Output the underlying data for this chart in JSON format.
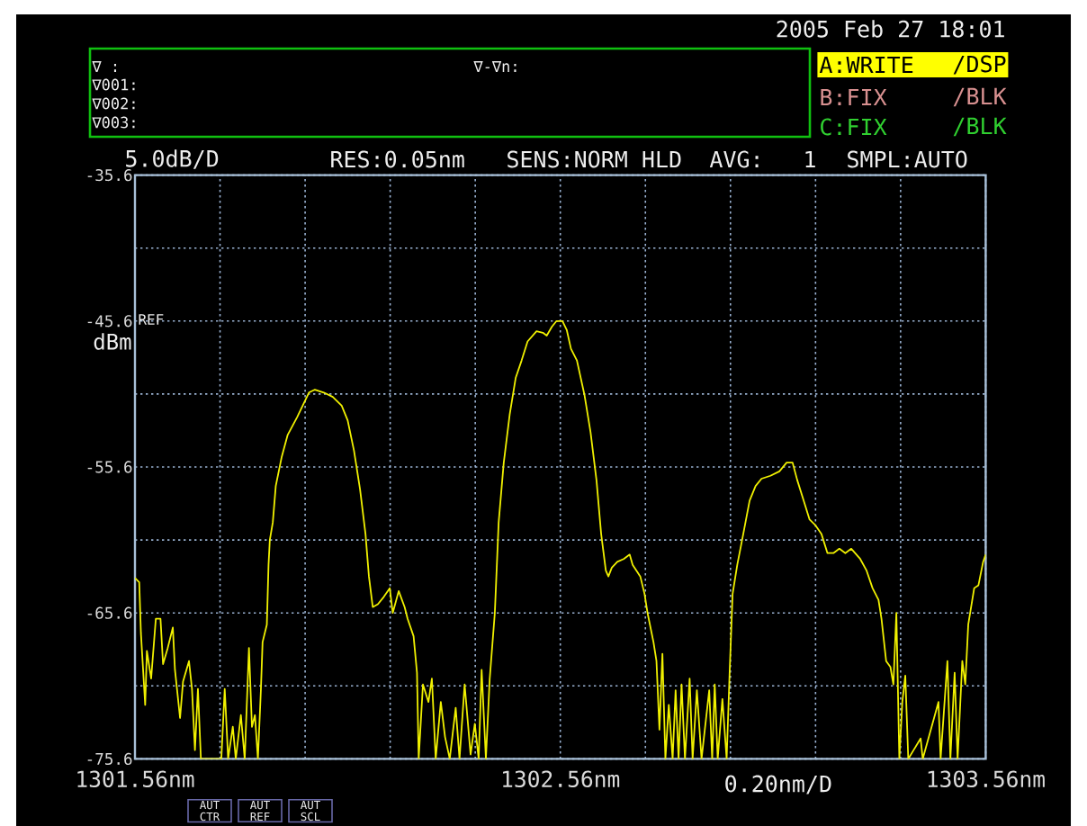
{
  "chart_data": {
    "type": "line",
    "xlim": [
      1301.56,
      1303.56
    ],
    "ylim": [
      -75.6,
      -35.6
    ],
    "xticks": [
      {
        "value": 1301.56,
        "label": "1301.56nm"
      },
      {
        "value": 1301.76,
        "label": null
      },
      {
        "value": 1301.96,
        "label": null
      },
      {
        "value": 1302.16,
        "label": null
      },
      {
        "value": 1302.36,
        "label": null
      },
      {
        "value": 1302.56,
        "label": "1302.56nm"
      },
      {
        "value": 1302.76,
        "label": null
      },
      {
        "value": 1302.96,
        "label": null
      },
      {
        "value": 1303.16,
        "label": null
      },
      {
        "value": 1303.36,
        "label": null
      },
      {
        "value": 1303.56,
        "label": "1303.56nm"
      }
    ],
    "yticks": [
      -75.6,
      {
        "value": -70.6,
        "label": null
      },
      -65.6,
      {
        "value": -60.6,
        "label": null
      },
      -55.6,
      {
        "value": -50.6,
        "label": null
      },
      -45.6,
      {
        "value": -40.6,
        "label": null
      },
      -35.6
    ],
    "grid": true,
    "xlabel": "0.20nm/D",
    "ylabel": "dBm",
    "annotations": [
      "2005 Feb 27 18:01",
      "∇ :",
      "∇-∇n:",
      "∇001:",
      "∇002:",
      "∇003:",
      "A:WRITE",
      "/DSP",
      "B:FIX",
      "/BLK",
      "C:FIX",
      "/BLK",
      "5.0dB/D",
      "RES:0.05nm",
      "SENS:NORM HLD",
      "AVG:",
      "1",
      "SMPL:AUTO",
      "REF",
      "AUT CTR",
      "AUT REF",
      "AUT SCL"
    ],
    "x": [
      1301.56,
      1301.57,
      1301.574,
      1301.584,
      1301.588,
      1301.598,
      1301.609,
      1301.62,
      1301.626,
      1301.637,
      1301.649,
      1301.654,
      1301.666,
      1301.673,
      1301.687,
      1301.694,
      1301.701,
      1301.708,
      1301.715,
      1301.763,
      1301.771,
      1301.779,
      1301.79,
      1301.797,
      1301.809,
      1301.818,
      1301.828,
      1301.835,
      1301.842,
      1301.849,
      1301.856,
      1301.86,
      1301.87,
      1301.874,
      1301.877,
      1301.884,
      1301.891,
      1301.905,
      1301.919,
      1301.941,
      1301.969,
      1301.983,
      1302.004,
      1302.025,
      1302.046,
      1302.06,
      1302.075,
      1302.089,
      1302.102,
      1302.11,
      1302.119,
      1302.131,
      1302.145,
      1302.159,
      1302.166,
      1302.18,
      1302.194,
      1302.201,
      1302.215,
      1302.223,
      1302.227,
      1302.237,
      1302.25,
      1302.258,
      1302.267,
      1302.279,
      1302.289,
      1302.3,
      1302.314,
      1302.323,
      1302.335,
      1302.349,
      1302.359,
      1302.368,
      1302.375,
      1302.385,
      1302.394,
      1302.406,
      1302.415,
      1302.427,
      1302.441,
      1302.455,
      1302.469,
      1302.483,
      1302.504,
      1302.519,
      1302.528,
      1302.54,
      1302.551,
      1302.565,
      1302.575,
      1302.585,
      1302.599,
      1302.617,
      1302.631,
      1302.645,
      1302.656,
      1302.667,
      1302.673,
      1302.681,
      1302.694,
      1302.709,
      1302.723,
      1302.73,
      1302.748,
      1302.758,
      1302.765,
      1302.779,
      1302.786,
      1302.793,
      1302.8,
      1302.807,
      1302.815,
      1302.824,
      1302.831,
      1302.838,
      1302.845,
      1302.853,
      1302.864,
      1302.871,
      1302.881,
      1302.892,
      1302.91,
      1302.917,
      1302.923,
      1302.93,
      1302.941,
      1302.951,
      1302.958,
      1302.965,
      1302.976,
      1302.99,
      1303.005,
      1303.019,
      1303.033,
      1303.054,
      1303.075,
      1303.092,
      1303.106,
      1303.117,
      1303.132,
      1303.146,
      1303.16,
      1303.174,
      1303.188,
      1303.202,
      1303.216,
      1303.23,
      1303.244,
      1303.265,
      1303.28,
      1303.294,
      1303.308,
      1303.315,
      1303.326,
      1303.336,
      1303.343,
      1303.35,
      1303.357,
      1303.364,
      1303.371,
      1303.378,
      1303.407,
      1303.412,
      1303.449,
      1303.454,
      1303.47,
      1303.477,
      1303.487,
      1303.494,
      1303.505,
      1303.512,
      1303.519,
      1303.533,
      1303.543,
      1303.554,
      1303.56
    ],
    "series": [
      {
        "color": "#f0f000",
        "values": [
          -63.2,
          -63.5,
          -67.0,
          -71.9,
          -68.2,
          -70.1,
          -66.0,
          -66.0,
          -69.1,
          -68.0,
          -66.6,
          -69.5,
          -72.8,
          -70.3,
          -68.9,
          -70.8,
          -75.0,
          -70.8,
          -75.6,
          -75.6,
          -70.8,
          -75.6,
          -73.4,
          -75.6,
          -72.6,
          -75.6,
          -68.0,
          -73.4,
          -72.6,
          -75.6,
          -70.9,
          -67.6,
          -66.4,
          -62.3,
          -60.6,
          -59.4,
          -56.9,
          -54.9,
          -53.4,
          -52.2,
          -50.5,
          -50.3,
          -50.5,
          -50.8,
          -51.4,
          -52.4,
          -54.5,
          -57.1,
          -60.2,
          -63.1,
          -65.2,
          -65.0,
          -64.5,
          -63.9,
          -65.6,
          -64.1,
          -65.2,
          -66.0,
          -67.2,
          -69.7,
          -75.6,
          -70.5,
          -71.7,
          -70.1,
          -75.6,
          -71.7,
          -74.1,
          -75.6,
          -72.1,
          -75.6,
          -70.5,
          -75.3,
          -73.2,
          -75.6,
          -69.5,
          -75.6,
          -70.1,
          -65.6,
          -59.4,
          -55.3,
          -52.0,
          -49.5,
          -48.3,
          -47.0,
          -46.3,
          -46.4,
          -46.6,
          -46.0,
          -45.6,
          -45.6,
          -46.2,
          -47.5,
          -48.3,
          -50.7,
          -53.2,
          -56.5,
          -60.2,
          -62.7,
          -63.1,
          -62.5,
          -62.1,
          -61.9,
          -61.6,
          -62.3,
          -63.1,
          -64.3,
          -65.6,
          -67.6,
          -68.9,
          -73.6,
          -68.4,
          -75.6,
          -71.9,
          -75.6,
          -70.9,
          -75.6,
          -70.5,
          -75.6,
          -70.1,
          -75.6,
          -70.9,
          -75.6,
          -70.9,
          -75.6,
          -70.5,
          -75.6,
          -71.5,
          -75.6,
          -69.7,
          -64.3,
          -62.3,
          -60.2,
          -57.9,
          -56.9,
          -56.4,
          -56.2,
          -55.9,
          -55.3,
          -55.3,
          -56.5,
          -57.9,
          -59.2,
          -59.6,
          -60.2,
          -61.5,
          -61.5,
          -61.2,
          -61.5,
          -61.2,
          -61.9,
          -62.7,
          -63.9,
          -64.7,
          -66.0,
          -68.9,
          -69.3,
          -70.5,
          -65.6,
          -75.6,
          -71.7,
          -69.9,
          -75.6,
          -74.2,
          -75.6,
          -71.7,
          -75.6,
          -68.9,
          -75.6,
          -69.7,
          -75.6,
          -68.9,
          -70.5,
          -66.4,
          -63.9,
          -63.7,
          -62.1,
          -61.6
        ]
      }
    ]
  }
}
